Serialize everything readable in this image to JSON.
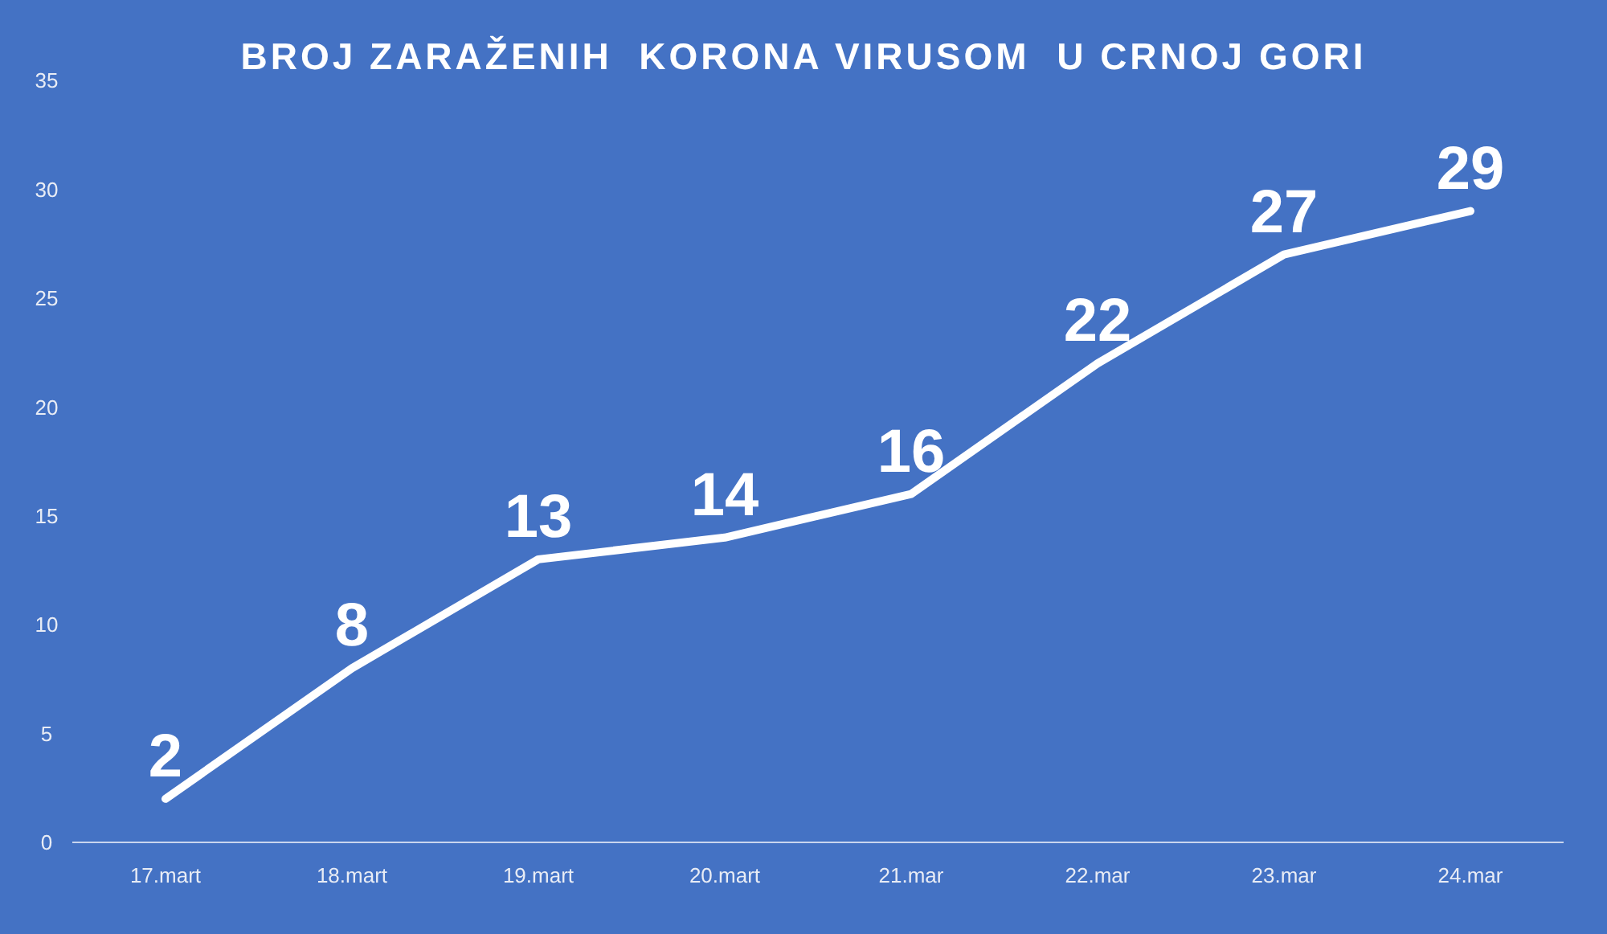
{
  "chart_data": {
    "type": "line",
    "title": "BROJ ZARAŽENIH  KORONA VIRUSOM  U CRNOJ GORI",
    "categories": [
      "17.mart",
      "18.mart",
      "19.mart",
      "20.mart",
      "21.mar",
      "22.mar",
      "23.mar",
      "24.mar"
    ],
    "series": [
      {
        "color": "#ffffff",
        "values": [
          2,
          8,
          13,
          14,
          16,
          22,
          27,
          29
        ]
      }
    ],
    "ylim": [
      0,
      35
    ],
    "yticks": [
      0,
      5,
      10,
      15,
      20,
      25,
      30,
      35
    ],
    "grid": false,
    "marker": "none",
    "line_style": "solid",
    "data_labels": true
  }
}
